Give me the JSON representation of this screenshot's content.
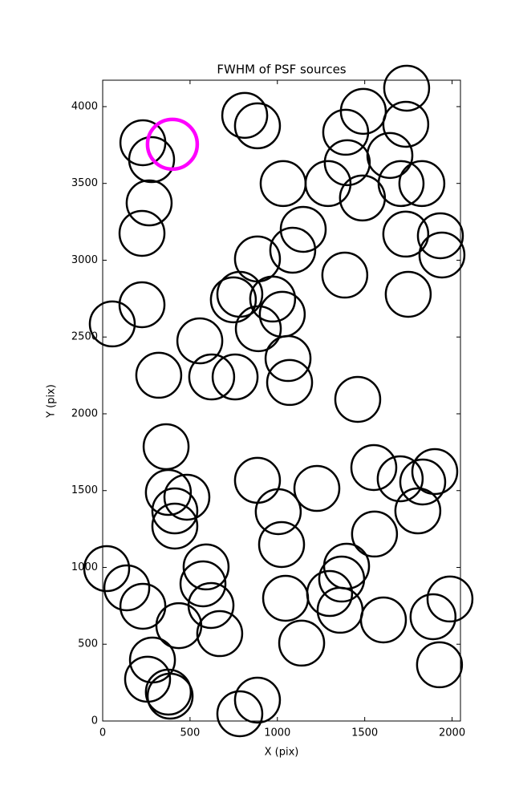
{
  "chart_data": {
    "type": "scatter",
    "title": "FWHM of PSF sources",
    "x_label": "X (pix)",
    "y_label": "Y (pix)",
    "xlim": [
      0,
      2048
    ],
    "ylim": [
      0,
      4172
    ],
    "xticks": [
      0,
      500,
      1000,
      1500,
      2000
    ],
    "yticks": [
      0,
      500,
      1000,
      1500,
      2000,
      2500,
      3000,
      3500,
      4000
    ],
    "grid": false,
    "series": [
      {
        "color": "#000000",
        "x": [
          230,
          280,
          266,
          225,
          225,
          55,
          321,
          363,
          376,
          482,
          413,
          413,
          23,
          138,
          230,
          436,
          285,
          257,
          376,
          386,
          556,
          624,
          758,
          748,
          785,
          886,
          813,
          886,
          1033,
          1148,
          1088,
          973,
          1028,
          891,
          1061,
          1070,
          1386,
          1460,
          886,
          1005,
          1024,
          1226,
          1047,
          1139,
          785,
          886,
          592,
          574,
          620,
          670,
          1290,
          1391,
          1400,
          1492,
          1487,
          1644,
          1708,
          1827,
          1740,
          1735,
          1735,
          1749,
          1933,
          1942,
          1552,
          1703,
          1832,
          1901,
          1804,
          1556,
          1396,
          1368,
          1299,
          1359,
          1607,
          1891,
          1988,
          1928
        ],
        "y": [
          3765,
          3655,
          3373,
          3175,
          2710,
          2585,
          2251,
          1786,
          1488,
          1457,
          1368,
          1269,
          992,
          867,
          747,
          621,
          397,
          272,
          188,
          162,
          2475,
          2240,
          2240,
          2742,
          2778,
          3008,
          3943,
          3875,
          3499,
          3201,
          3065,
          2747,
          2648,
          2554,
          2360,
          2204,
          2903,
          2094,
          1567,
          1363,
          1149,
          1514,
          799,
          507,
          47,
          136,
          1003,
          893,
          752,
          569,
          3499,
          3833,
          3635,
          3969,
          3405,
          3682,
          3499,
          3499,
          4120,
          3885,
          3170,
          2778,
          3159,
          3034,
          1650,
          1577,
          1556,
          1624,
          1368,
          1217,
          1008,
          924,
          830,
          721,
          658,
          679,
          794,
          366
        ]
      },
      {
        "color": "#ff00ff",
        "x": [
          399
        ],
        "y": [
          3755
        ]
      }
    ]
  }
}
